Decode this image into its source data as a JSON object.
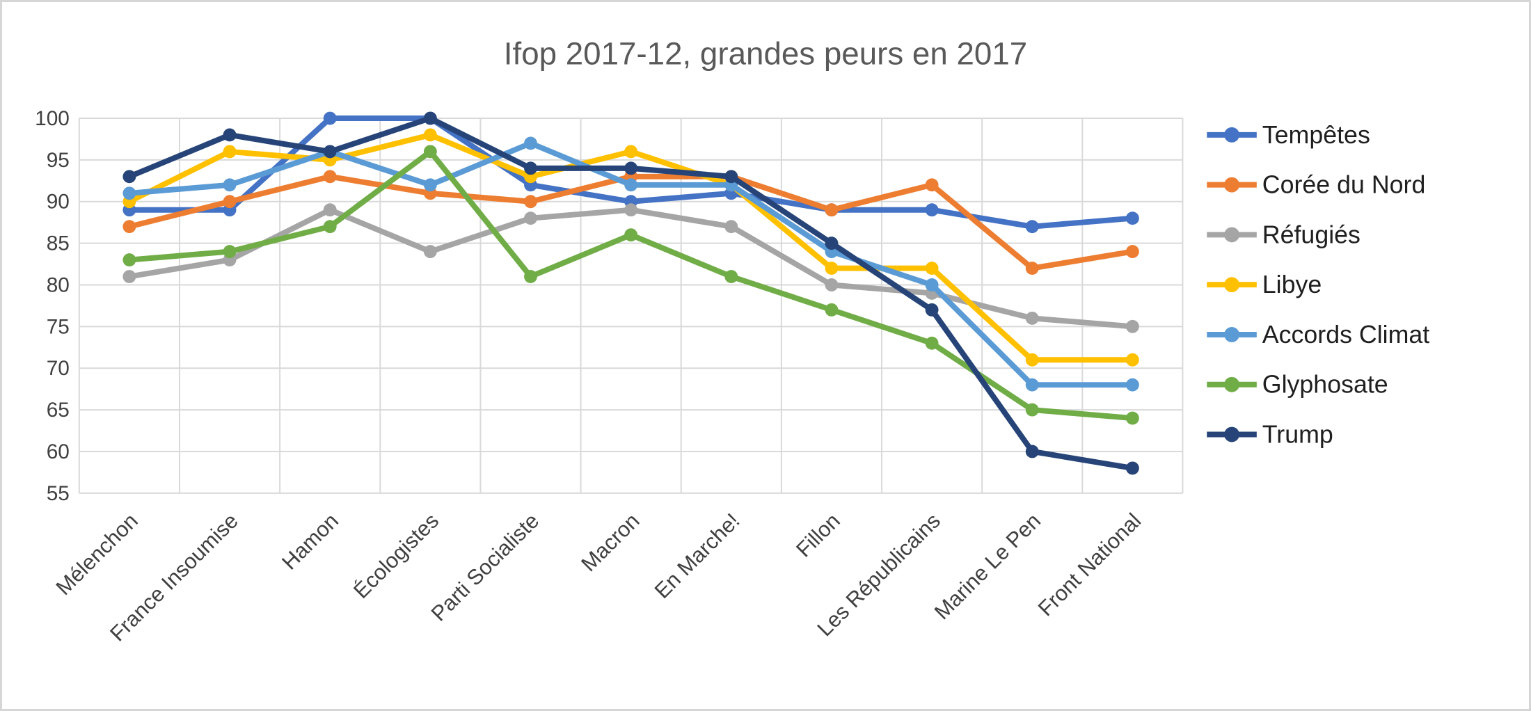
{
  "chart_data": {
    "type": "line",
    "title": "Ifop 2017-12, grandes peurs en 2017",
    "categories": [
      "Mélenchon",
      "France Insoumise",
      "Hamon",
      "Écologistes",
      "Parti Socialiste",
      "Macron",
      "En Marche!",
      "Fillon",
      "Les Républicains",
      "Marine Le Pen",
      "Front National"
    ],
    "series": [
      {
        "name": "Tempêtes",
        "color": "#4472C4",
        "values": [
          89,
          89,
          100,
          100,
          92,
          90,
          91,
          89,
          89,
          87,
          88
        ]
      },
      {
        "name": "Corée du Nord",
        "color": "#ED7D31",
        "values": [
          87,
          90,
          93,
          91,
          90,
          93,
          93,
          89,
          92,
          82,
          84
        ]
      },
      {
        "name": "Réfugiés",
        "color": "#A5A5A5",
        "values": [
          81,
          83,
          89,
          84,
          88,
          89,
          87,
          80,
          79,
          76,
          75
        ]
      },
      {
        "name": "Libye",
        "color": "#FFC000",
        "values": [
          90,
          96,
          95,
          98,
          93,
          96,
          92,
          82,
          82,
          71,
          71
        ]
      },
      {
        "name": "Accords Climat",
        "color": "#5B9BD5",
        "values": [
          91,
          92,
          96,
          92,
          97,
          92,
          92,
          84,
          80,
          68,
          68
        ]
      },
      {
        "name": "Glyphosate",
        "color": "#70AD47",
        "values": [
          83,
          84,
          87,
          96,
          81,
          86,
          81,
          77,
          73,
          65,
          64
        ]
      },
      {
        "name": "Trump",
        "color": "#264478",
        "values": [
          93,
          98,
          96,
          100,
          94,
          94,
          93,
          85,
          77,
          60,
          58
        ]
      }
    ],
    "ylim": [
      55,
      100
    ],
    "ytick_step": 5,
    "ytick_labels": [
      "100",
      "95",
      "90",
      "85",
      "80",
      "75",
      "70",
      "65",
      "60",
      "55"
    ],
    "grid": "both",
    "grid_color": "#d9d9d9",
    "legend_position": "right",
    "xlabel": "",
    "ylabel": ""
  }
}
